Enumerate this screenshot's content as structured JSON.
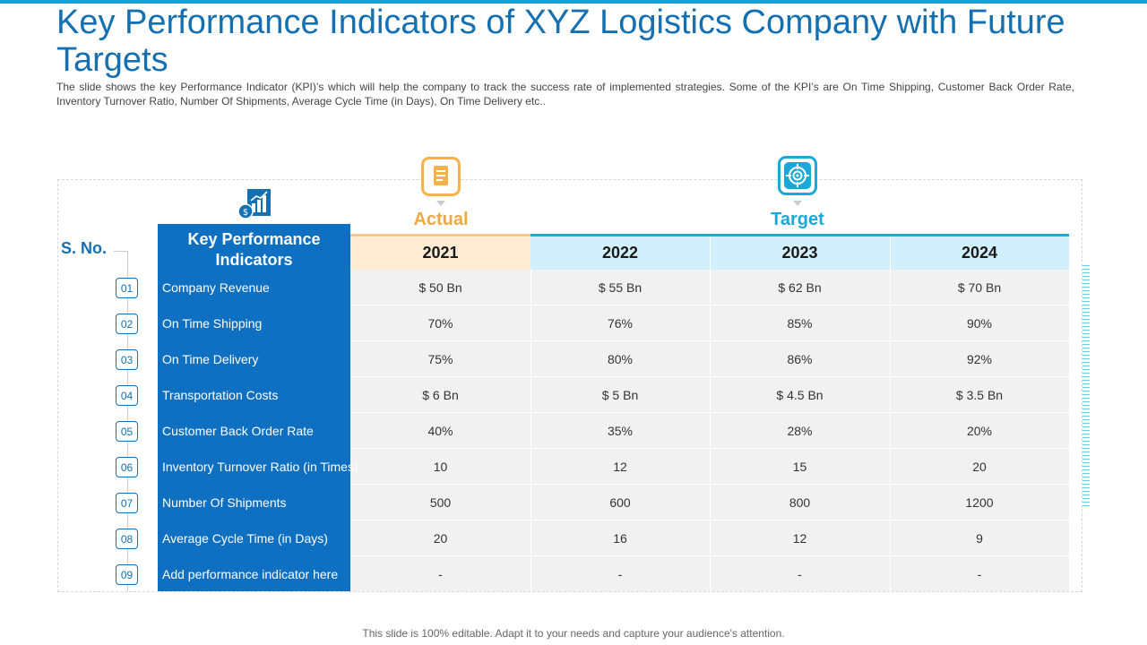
{
  "title": "Key Performance Indicators of XYZ Logistics Company with Future Targets",
  "subtitle": "The slide shows the key Performance Indicator (KPI)’s which will help the company to track the success rate of implemented strategies. Some of the KPI’s are On Time Shipping, Customer Back Order Rate, Inventory Turnover Ratio, Number Of Shipments, Average Cycle Time (in Days), On Time Delivery etc..",
  "labels": {
    "sno": "S. No.",
    "kpi_header": "Key Performance Indicators",
    "actual": "Actual",
    "target": "Target"
  },
  "years": [
    "2021",
    "2022",
    "2023",
    "2024"
  ],
  "rows": [
    {
      "no": "01",
      "kpi": "Company Revenue",
      "values": [
        "$ 50 Bn",
        "$ 55 Bn",
        "$ 62 Bn",
        "$ 70 Bn"
      ]
    },
    {
      "no": "02",
      "kpi": "On Time Shipping",
      "values": [
        "70%",
        "76%",
        "85%",
        "90%"
      ]
    },
    {
      "no": "03",
      "kpi": "On Time Delivery",
      "values": [
        "75%",
        "80%",
        "86%",
        "92%"
      ]
    },
    {
      "no": "04",
      "kpi": "Transportation Costs",
      "values": [
        "$ 6 Bn",
        "$ 5 Bn",
        "$ 4.5 Bn",
        "$ 3.5 Bn"
      ]
    },
    {
      "no": "05",
      "kpi": "Customer Back Order Rate",
      "values": [
        "40%",
        "35%",
        "28%",
        "20%"
      ]
    },
    {
      "no": "06",
      "kpi": "Inventory Turnover Ratio (in Times)",
      "values": [
        "10",
        "12",
        "15",
        "20"
      ]
    },
    {
      "no": "07",
      "kpi": "Number Of Shipments",
      "values": [
        "500",
        "600",
        "800",
        "1200"
      ]
    },
    {
      "no": "08",
      "kpi": "Average Cycle Time (in Days)",
      "values": [
        "20",
        "16",
        "12",
        "9"
      ]
    },
    {
      "no": "09",
      "kpi": "Add performance indicator here",
      "values": [
        "-",
        "-",
        "-",
        "-"
      ]
    }
  ],
  "icons": {
    "actual": "document-icon",
    "target": "target-icon",
    "kpi": "bar-chart-icon"
  },
  "colors": {
    "title": "#1470b0",
    "kpi_panel": "#0f6fc0",
    "actual": "#f0a840",
    "target": "#1aa8d8"
  },
  "footer": "This slide is 100% editable. Adapt it to your needs and capture your audience's attention."
}
